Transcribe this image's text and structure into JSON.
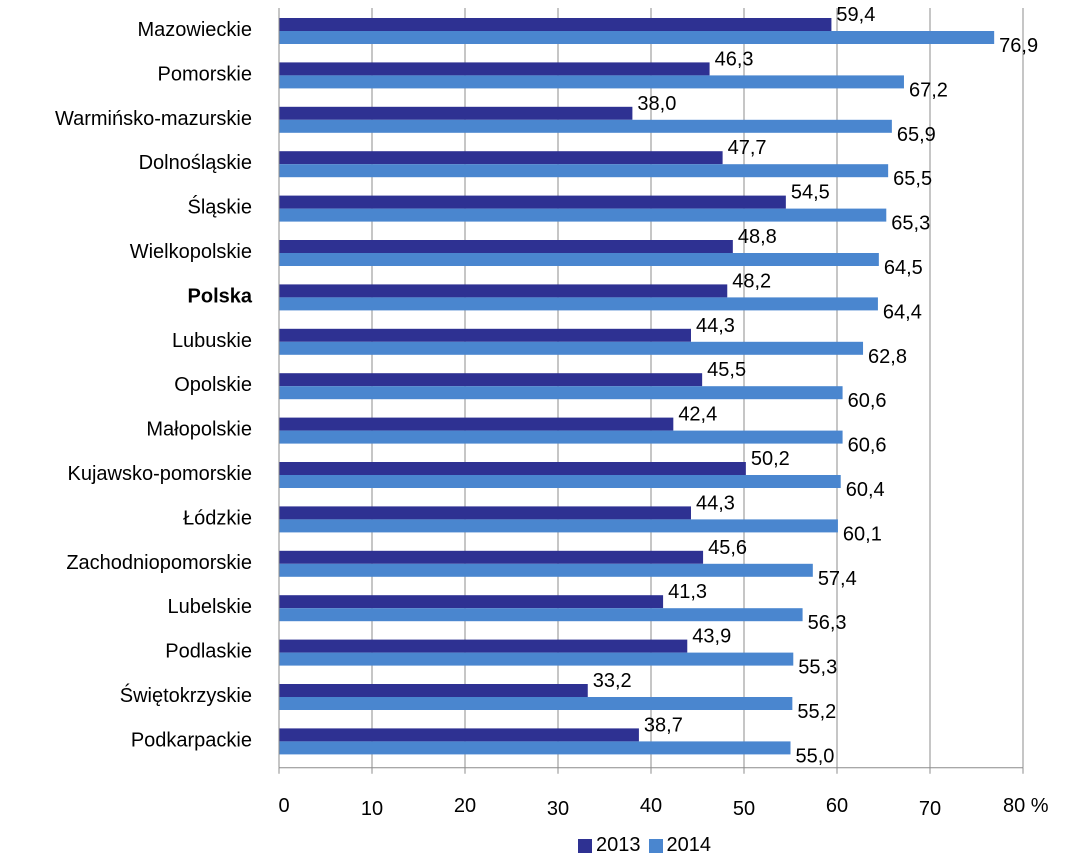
{
  "chart_data": {
    "type": "bar",
    "orientation": "horizontal",
    "categories": [
      "Mazowieckie",
      "Pomorskie",
      "Warmińsko-mazurskie",
      "Dolnośląskie",
      "Śląskie",
      "Wielkopolskie",
      "Polska",
      "Lubuskie",
      "Opolskie",
      "Małopolskie",
      "Kujawsko-pomorskie",
      "Łódzkie",
      "Zachodniopomorskie",
      "Lubelskie",
      "Podlaskie",
      "Świętokrzyskie",
      "Podkarpackie"
    ],
    "emphasized_category": "Polska",
    "series": [
      {
        "name": "2013",
        "color": "#2E3192",
        "values": [
          59.4,
          46.3,
          38.0,
          47.7,
          54.5,
          48.8,
          48.2,
          44.3,
          45.5,
          42.4,
          50.2,
          44.3,
          45.6,
          41.3,
          43.9,
          33.2,
          38.7
        ],
        "labels": [
          "59,4",
          "46,3",
          "38,0",
          "47,7",
          "54,5",
          "48,8",
          "48,2",
          "44,3",
          "45,5",
          "42,4",
          "50,2",
          "44,3",
          "45,6",
          "41,3",
          "43,9",
          "33,2",
          "38,7"
        ]
      },
      {
        "name": "2014",
        "color": "#4A86CF",
        "values": [
          76.9,
          67.2,
          65.9,
          65.5,
          65.3,
          64.5,
          64.4,
          62.8,
          60.6,
          60.6,
          60.4,
          60.1,
          57.4,
          56.3,
          55.3,
          55.2,
          55.0
        ],
        "labels": [
          "76,9",
          "67,2",
          "65,9",
          "65,5",
          "65,3",
          "64,5",
          "64,4",
          "62,8",
          "60,6",
          "60,6",
          "60,4",
          "60,1",
          "57,4",
          "56,3",
          "55,3",
          "55,2",
          "55,0"
        ]
      }
    ],
    "xlim": [
      0,
      80
    ],
    "xticks": [
      "0",
      "10",
      "20",
      "30",
      "40",
      "50",
      "60",
      "70",
      "80 %"
    ],
    "xtick_values": [
      0,
      10,
      20,
      30,
      40,
      50,
      60,
      70,
      80
    ],
    "grid": true,
    "legend_position": "bottom"
  }
}
